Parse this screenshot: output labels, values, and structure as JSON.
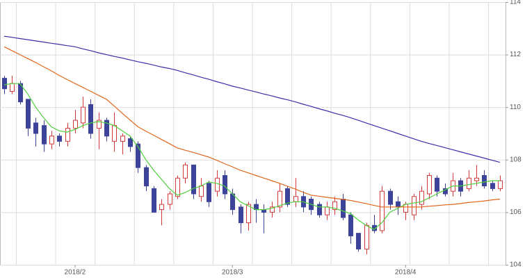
{
  "chart_data": {
    "type": "candlestick",
    "categories": [
      null,
      null,
      null,
      null,
      null,
      null,
      null,
      null,
      null,
      "2018/2",
      null,
      null,
      null,
      null,
      null,
      null,
      null,
      null,
      null,
      null,
      null,
      null,
      null,
      null,
      null,
      null,
      null,
      null,
      null,
      "2018/3",
      null,
      null,
      null,
      null,
      null,
      null,
      null,
      null,
      null,
      null,
      null,
      null,
      null,
      null,
      null,
      null,
      null,
      null,
      null,
      null,
      null,
      "2018/4",
      null,
      null,
      null,
      null,
      null,
      null,
      null,
      null,
      null,
      null,
      null,
      null
    ],
    "open": [
      111.1,
      110.6,
      110.9,
      110.3,
      109.4,
      109.3,
      108.6,
      108.9,
      108.7,
      109.2,
      109.4,
      110.1,
      109.2,
      109.5,
      108.7,
      108.7,
      108.8,
      108.6,
      107.7,
      106.9,
      106.1,
      106.3,
      106.6,
      107.3,
      107.8,
      106.6,
      107.1,
      106.8,
      107.4,
      106.7,
      106.2,
      105.6,
      106.3,
      106.1,
      106.0,
      106.2,
      106.9,
      106.4,
      106.6,
      106.5,
      106.3,
      105.9,
      106.1,
      106.5,
      105.9,
      105.2,
      104.6,
      105.5,
      105.3,
      106.8,
      106.4,
      106.0,
      105.9,
      106.3,
      106.7,
      107.3,
      106.9,
      106.8,
      107.2,
      106.9,
      107.2,
      107.4,
      107.1,
      106.9
    ],
    "high": [
      111.2,
      111.2,
      111.0,
      110.3,
      109.6,
      109.5,
      109.1,
      109.0,
      109.4,
      109.9,
      110.4,
      110.3,
      109.8,
      109.6,
      109.8,
      109.0,
      108.9,
      108.7,
      107.8,
      107.0,
      106.5,
      106.8,
      107.4,
      107.9,
      107.8,
      107.3,
      107.2,
      107.6,
      107.6,
      106.9,
      106.3,
      106.4,
      106.5,
      106.3,
      106.4,
      107.1,
      107.0,
      107.3,
      106.8,
      106.6,
      106.4,
      106.4,
      106.6,
      106.7,
      106.0,
      105.2,
      105.6,
      105.9,
      107.0,
      106.9,
      106.6,
      106.4,
      106.7,
      107.0,
      107.5,
      107.4,
      107.1,
      107.5,
      107.3,
      107.6,
      107.8,
      107.6,
      107.2,
      107.4
    ],
    "low": [
      110.5,
      110.5,
      110.1,
      108.9,
      108.5,
      108.3,
      108.4,
      108.5,
      108.5,
      109.0,
      109.2,
      108.8,
      108.4,
      108.7,
      108.3,
      108.2,
      108.3,
      107.5,
      106.8,
      106.0,
      105.5,
      106.1,
      106.5,
      107.1,
      106.5,
      106.4,
      106.2,
      106.6,
      106.5,
      105.9,
      105.2,
      105.3,
      105.6,
      105.2,
      105.8,
      106.0,
      106.2,
      106.2,
      106.0,
      105.9,
      105.8,
      105.7,
      105.9,
      105.7,
      104.8,
      104.5,
      104.4,
      105.2,
      105.2,
      106.1,
      105.9,
      105.7,
      105.7,
      106.1,
      106.5,
      106.6,
      106.6,
      106.6,
      106.6,
      106.8,
      107.0,
      106.9,
      106.8,
      106.8
    ],
    "close": [
      110.7,
      110.9,
      110.2,
      109.2,
      109.0,
      108.6,
      108.9,
      108.7,
      109.2,
      109.5,
      110.0,
      109.0,
      109.5,
      108.9,
      109.3,
      108.9,
      108.5,
      107.7,
      107.0,
      106.0,
      106.3,
      106.7,
      107.3,
      107.8,
      106.7,
      107.0,
      106.4,
      107.3,
      106.7,
      106.1,
      105.6,
      106.3,
      106.1,
      106.0,
      106.2,
      106.8,
      106.3,
      106.6,
      106.2,
      106.1,
      105.9,
      106.2,
      106.4,
      105.8,
      105.1,
      104.6,
      105.5,
      105.3,
      106.8,
      106.3,
      106.2,
      106.3,
      106.6,
      106.8,
      107.4,
      106.8,
      106.7,
      107.2,
      106.8,
      107.3,
      107.3,
      107.0,
      106.9,
      107.2
    ],
    "up_color": "#d23a3a",
    "down_color": "#3c4399",
    "series": [
      {
        "color": "#4fcf3c",
        "values": [
          110.85,
          110.9,
          110.9,
          110.5,
          110.0,
          109.6,
          109.25,
          109.1,
          109.05,
          109.15,
          109.3,
          109.4,
          109.45,
          109.4,
          109.3,
          109.1,
          108.9,
          108.5,
          108.0,
          107.6,
          107.25,
          106.9,
          106.65,
          106.75,
          106.9,
          107.0,
          107.15,
          107.1,
          107.0,
          106.7,
          106.4,
          106.25,
          106.1,
          106.1,
          106.15,
          106.25,
          106.35,
          106.4,
          106.4,
          106.3,
          106.2,
          106.2,
          106.15,
          106.05,
          105.95,
          105.7,
          105.5,
          105.35,
          105.6,
          106.0,
          106.15,
          106.3,
          106.35,
          106.4,
          106.55,
          106.7,
          106.85,
          107.0,
          107.0,
          107.05,
          107.1,
          107.15,
          107.2,
          107.2
        ]
      },
      {
        "color": "#e0661a",
        "values": [
          112.3,
          112.15,
          112.0,
          111.85,
          111.7,
          111.54,
          111.38,
          111.21,
          111.05,
          110.9,
          110.75,
          110.6,
          110.45,
          110.3,
          110.04,
          109.77,
          109.51,
          109.25,
          109.09,
          108.93,
          108.77,
          108.61,
          108.45,
          108.36,
          108.28,
          108.19,
          108.1,
          107.98,
          107.85,
          107.73,
          107.6,
          107.5,
          107.4,
          107.3,
          107.2,
          107.1,
          106.99,
          106.88,
          106.76,
          106.65,
          106.61,
          106.57,
          106.53,
          106.49,
          106.45,
          106.39,
          106.33,
          106.26,
          106.2,
          106.2,
          106.2,
          106.2,
          106.2,
          106.2,
          106.23,
          106.25,
          106.28,
          106.3,
          106.33,
          106.37,
          106.4,
          106.43,
          106.47,
          106.5
        ]
      },
      {
        "color": "#3a2fa8",
        "values": [
          112.7,
          112.66,
          112.61,
          112.57,
          112.52,
          112.48,
          112.43,
          112.39,
          112.34,
          112.3,
          112.22,
          112.15,
          112.07,
          112.0,
          111.93,
          111.87,
          111.8,
          111.73,
          111.67,
          111.6,
          111.53,
          111.47,
          111.4,
          111.31,
          111.23,
          111.14,
          111.06,
          110.97,
          110.89,
          110.8,
          110.73,
          110.65,
          110.58,
          110.5,
          110.43,
          110.35,
          110.28,
          110.2,
          110.11,
          110.03,
          109.94,
          109.86,
          109.77,
          109.69,
          109.6,
          109.5,
          109.4,
          109.3,
          109.2,
          109.1,
          109.0,
          108.9,
          108.8,
          108.7,
          108.62,
          108.54,
          108.46,
          108.38,
          108.3,
          108.22,
          108.14,
          108.06,
          107.98,
          107.9
        ]
      }
    ],
    "ylim": [
      104,
      114
    ],
    "yticks": [
      104,
      106,
      108,
      110,
      112,
      114
    ],
    "grid": true,
    "y_axis_side": "right"
  }
}
